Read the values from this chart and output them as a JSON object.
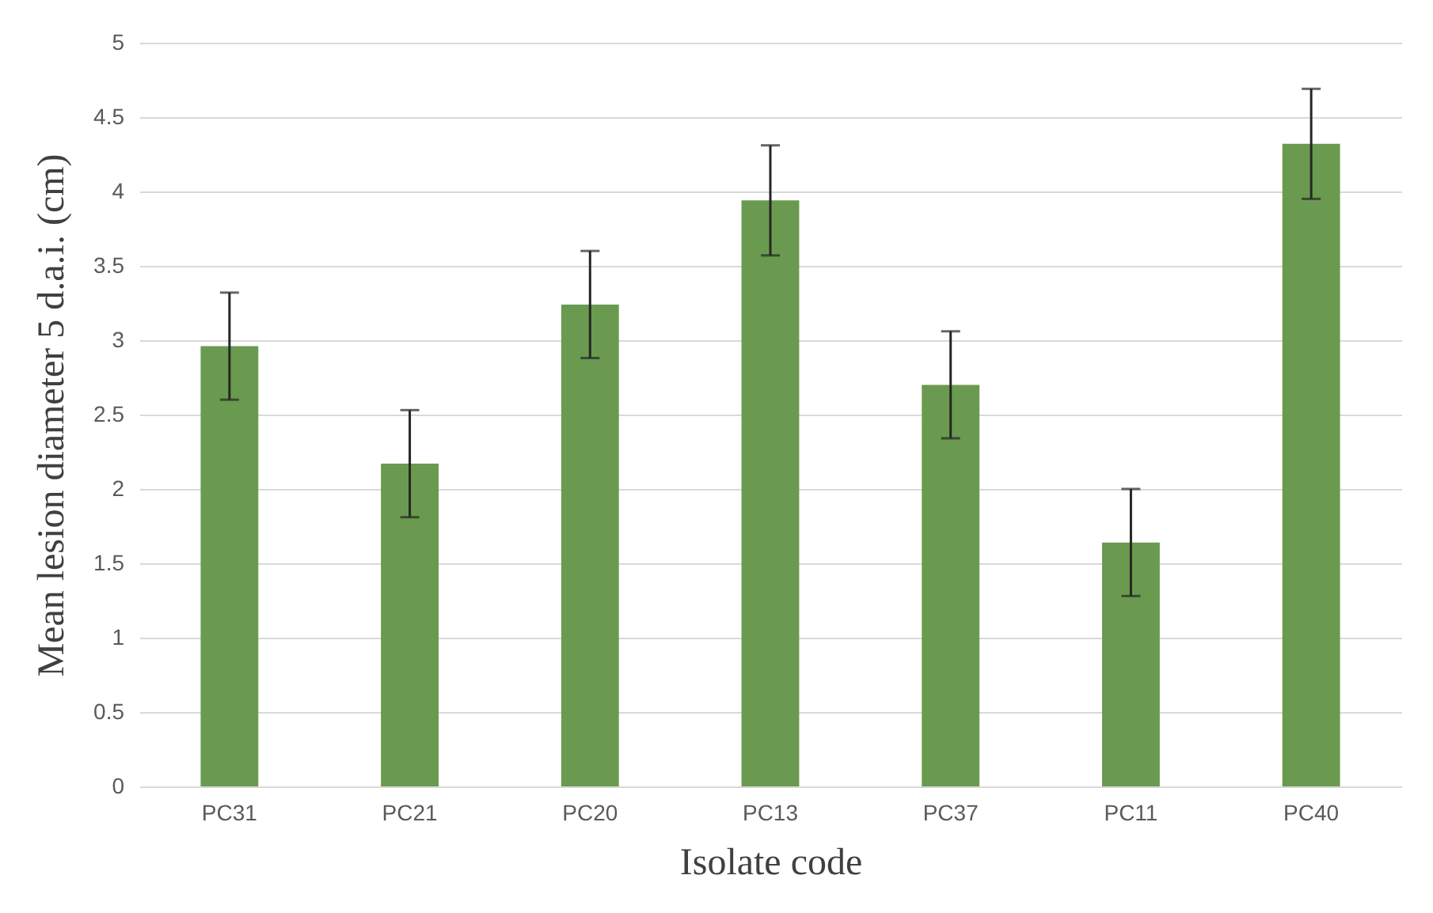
{
  "chart_data": {
    "type": "bar",
    "xlabel": "Isolate code",
    "ylabel": "Mean lesion diameter 5 d.a.i. (cm)",
    "categories": [
      "PC31",
      "PC21",
      "PC20",
      "PC13",
      "PC37",
      "PC11",
      "PC40"
    ],
    "values": [
      2.96,
      2.17,
      3.24,
      3.94,
      2.7,
      1.64,
      4.32
    ],
    "errors": [
      0.36,
      0.36,
      0.36,
      0.37,
      0.36,
      0.36,
      0.37
    ],
    "color": "#6a9a4f",
    "ylim": [
      0,
      5
    ],
    "yticks": [
      0,
      0.5,
      1,
      1.5,
      2,
      2.5,
      3,
      3.5,
      4,
      4.5,
      5
    ],
    "grid": "y"
  }
}
